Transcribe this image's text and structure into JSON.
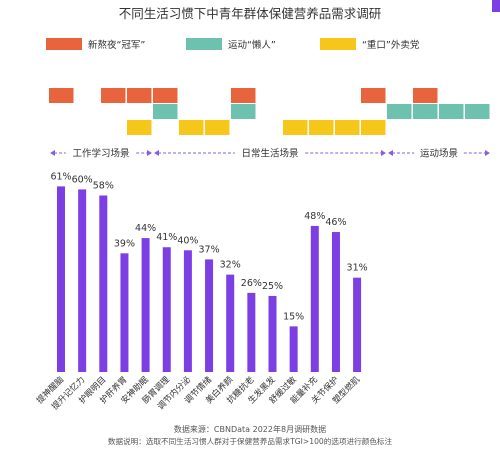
{
  "colors": {
    "orange": "#E8643C",
    "teal": "#6CC2AE",
    "yellow": "#F7C61A",
    "purple": "#7B3FE4",
    "arrow": "#8A5CE6",
    "text": "#333333",
    "grid": "#EFEFEF"
  },
  "legend": [
    {
      "label": "新熬夜“冠军”",
      "color": "orange"
    },
    {
      "label": "运动“懒人”",
      "color": "teal"
    },
    {
      "label": "“重口”外卖党",
      "color": "yellow"
    }
  ],
  "scenarios": [
    {
      "label": "工作学习场景",
      "from": 0,
      "to": 4
    },
    {
      "label": "日常生活场景",
      "from": 4,
      "to": 13
    },
    {
      "label": "运动场景",
      "from": 13,
      "to": 17
    }
  ],
  "footer": {
    "source": "数据来源：CBNData 2022年8月调研数据",
    "note": "数据说明：选取不同生活习惯人群对于保健营养品需求TGI>100的选项进行颜色标注"
  },
  "chart_data": {
    "type": "bar",
    "title": "不同生活习惯下中青年群体保健营养品需求调研",
    "categories": [
      "提神醒脑",
      "提升记忆力",
      "护眼明目",
      "护肝养胃",
      "安神助眠",
      "肠胃调理",
      "调节内分泌",
      "调节情绪",
      "美白养颜",
      "抗糖抗老",
      "生发黑发",
      "舒缓过敏",
      "能量补充",
      "关节保护",
      "塑型燃肌"
    ],
    "values": [
      61,
      60,
      58,
      39,
      44,
      41,
      40,
      37,
      32,
      26,
      25,
      15,
      48,
      46,
      31
    ],
    "value_labels": [
      "61%",
      "60%",
      "58%",
      "39%",
      "44%",
      "41%",
      "40%",
      "37%",
      "32%",
      "26%",
      "25%",
      "15%",
      "48%",
      "46%",
      "31%"
    ],
    "ylim": [
      0,
      70
    ],
    "grid": false,
    "highlights": {
      "orange": [
        0,
        2,
        3,
        4,
        7,
        12,
        14
      ],
      "teal": [
        4,
        7,
        13,
        14,
        15,
        16
      ],
      "yellow": [
        3,
        5,
        6,
        9,
        10,
        11,
        12
      ]
    }
  }
}
